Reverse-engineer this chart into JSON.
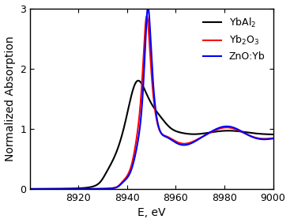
{
  "xmin": 8900,
  "xmax": 9000,
  "ymin": 0,
  "ymax": 3,
  "xlabel": "E, eV",
  "ylabel": "Normalized Absorption",
  "xticks": [
    8920,
    8940,
    8960,
    8980,
    9000
  ],
  "yticks": [
    0,
    1,
    2,
    3
  ],
  "legend": [
    {
      "label": "YbAl$_2$",
      "color": "#000000"
    },
    {
      "label": "Yb$_2$O$_3$",
      "color": "#ff0000"
    },
    {
      "label": "ZnO:Yb",
      "color": "#0000ff"
    }
  ],
  "figsize": [
    3.67,
    2.82
  ],
  "dpi": 100,
  "linewidth": 1.5,
  "background_color": "#ffffff"
}
